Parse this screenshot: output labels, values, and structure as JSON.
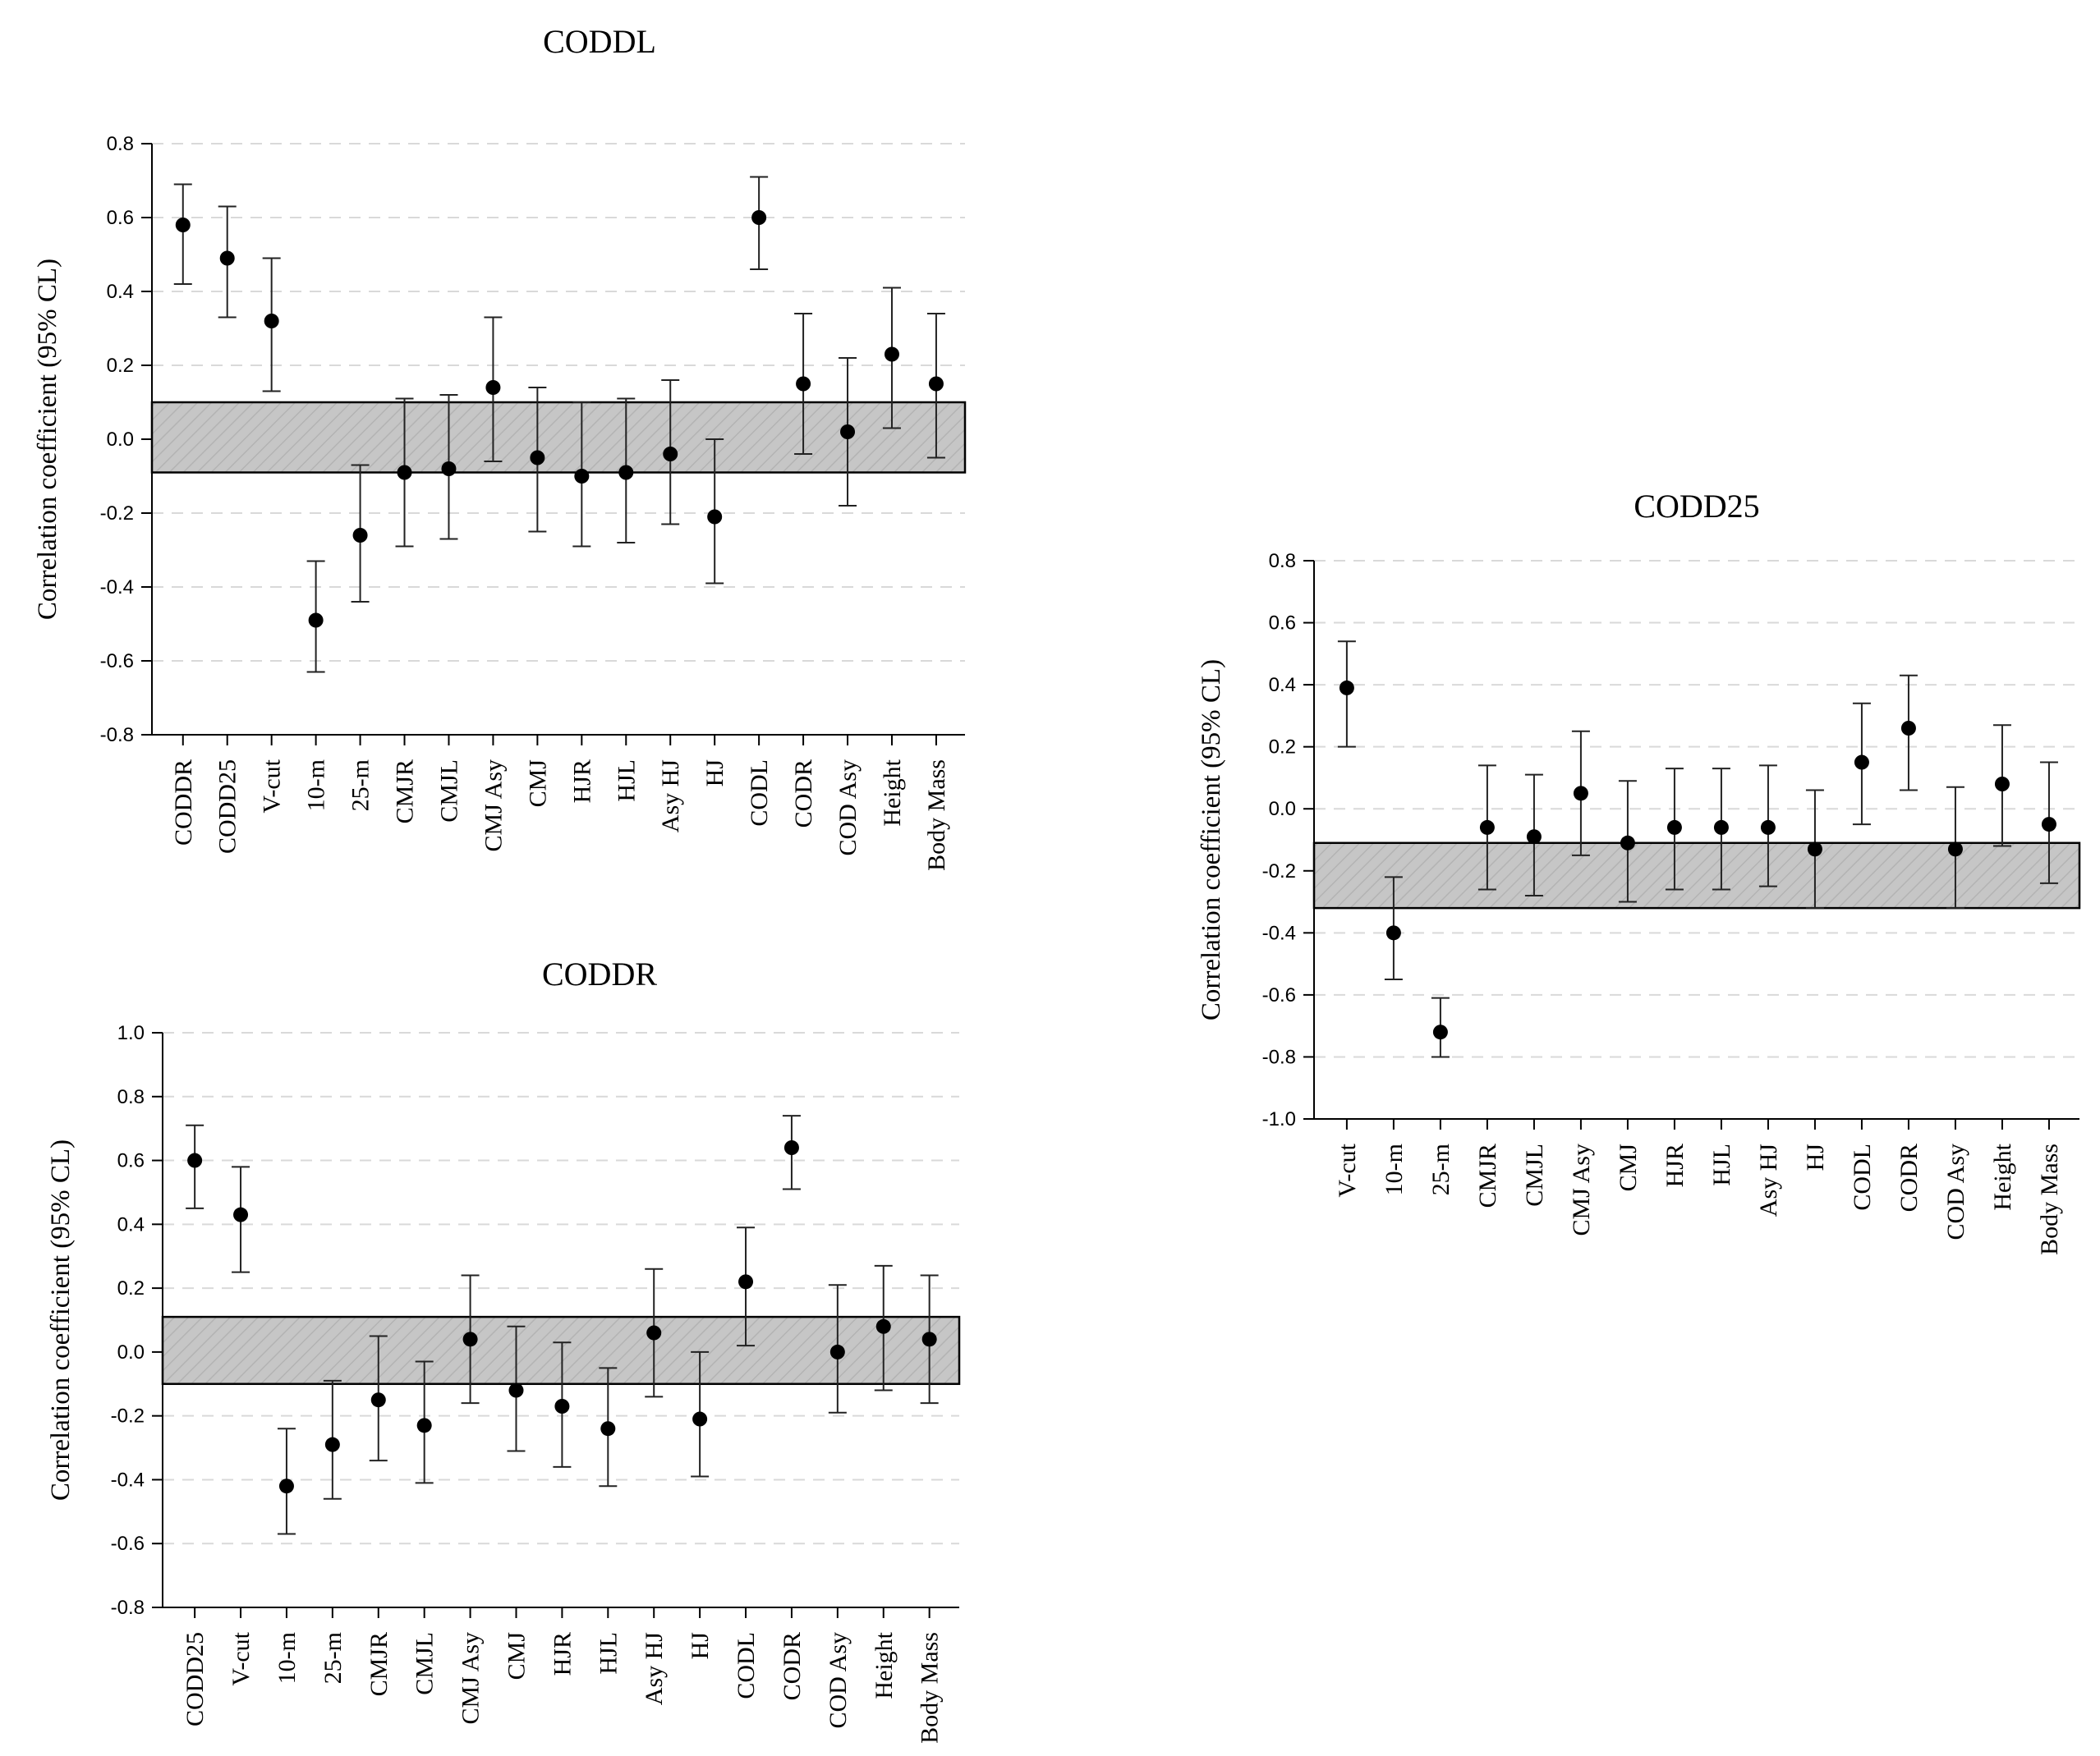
{
  "chart_data": [
    {
      "type": "scatter",
      "title": "CODDL",
      "ylabel": "Correlation coefficient (95% CL)",
      "xlabel": "",
      "ylim": [
        -0.8,
        0.8
      ],
      "yticks": [
        -0.8,
        -0.6,
        -0.4,
        -0.2,
        0.0,
        0.2,
        0.4,
        0.6,
        0.8
      ],
      "ytick_labels": [
        "-0.8",
        "-0.6",
        "-0.4",
        "-0.2",
        "0.0",
        "0.2",
        "0.4",
        "0.6",
        "0.8"
      ],
      "band": [
        -0.09,
        0.1
      ],
      "grid": "dashed horizontal",
      "categories": [
        "CODDR",
        "CODD25",
        "V-cut",
        "10-m",
        "25-m",
        "CMJR",
        "CMJL",
        "CMJ Asy",
        "CMJ",
        "HJR",
        "HJL",
        "Asy HJ",
        "HJ",
        "CODL",
        "CODR",
        "COD Asy",
        "Height",
        "Body Mass"
      ],
      "values": [
        0.58,
        0.49,
        0.32,
        -0.49,
        -0.26,
        -0.09,
        -0.08,
        0.14,
        -0.05,
        -0.1,
        -0.09,
        -0.04,
        -0.21,
        0.6,
        0.15,
        0.02,
        0.23,
        0.15
      ],
      "lower": [
        0.42,
        0.33,
        0.13,
        -0.63,
        -0.44,
        -0.29,
        -0.27,
        -0.06,
        -0.25,
        -0.29,
        -0.28,
        -0.23,
        -0.39,
        0.46,
        -0.04,
        -0.18,
        0.03,
        -0.05
      ],
      "upper": [
        0.69,
        0.63,
        0.49,
        -0.33,
        -0.07,
        0.11,
        0.12,
        0.33,
        0.14,
        0.1,
        0.11,
        0.16,
        0.0,
        0.71,
        0.34,
        0.22,
        0.41,
        0.34
      ]
    },
    {
      "type": "scatter",
      "title": "CODDR",
      "ylabel": "Correlation coefficient (95% CL)",
      "xlabel": "",
      "ylim": [
        -0.8,
        1.0
      ],
      "yticks": [
        -0.8,
        -0.6,
        -0.4,
        -0.2,
        0.0,
        0.2,
        0.4,
        0.6,
        0.8,
        1.0
      ],
      "ytick_labels": [
        "-0.8",
        "-0.6",
        "-0.4",
        "-0.2",
        "0.0",
        "0.2",
        "0.4",
        "0.6",
        "0.8",
        "1.0"
      ],
      "band": [
        -0.1,
        0.11
      ],
      "grid": "dashed horizontal",
      "categories": [
        "CODD25",
        "V-cut",
        "10-m",
        "25-m",
        "CMJR",
        "CMJL",
        "CMJ Asy",
        "CMJ",
        "HJR",
        "HJL",
        "Asy HJ",
        "HJ",
        "CODL",
        "CODR",
        "COD Asy",
        "Height",
        "Body Mass"
      ],
      "values": [
        0.6,
        0.43,
        -0.42,
        -0.29,
        -0.15,
        -0.23,
        0.04,
        -0.12,
        -0.17,
        -0.24,
        0.06,
        -0.21,
        0.22,
        0.64,
        0.0,
        0.08,
        0.04
      ],
      "lower": [
        0.45,
        0.25,
        -0.57,
        -0.46,
        -0.34,
        -0.41,
        -0.16,
        -0.31,
        -0.36,
        -0.42,
        -0.14,
        -0.39,
        0.02,
        0.51,
        -0.19,
        -0.12,
        -0.16
      ],
      "upper": [
        0.71,
        0.58,
        -0.24,
        -0.09,
        0.05,
        -0.03,
        0.24,
        0.08,
        0.03,
        -0.05,
        0.26,
        0.0,
        0.39,
        0.74,
        0.21,
        0.27,
        0.24
      ]
    },
    {
      "type": "scatter",
      "title": "CODD25",
      "ylabel": "Correlation coefficient (95% CL)",
      "xlabel": "",
      "ylim": [
        -1.0,
        0.8
      ],
      "yticks": [
        -1.0,
        -0.8,
        -0.6,
        -0.4,
        -0.2,
        0.0,
        0.2,
        0.4,
        0.6,
        0.8
      ],
      "ytick_labels": [
        "-1.0",
        "-0.8",
        "-0.6",
        "-0.4",
        "-0.2",
        "0.0",
        "0.2",
        "0.4",
        "0.6",
        "0.8"
      ],
      "band": [
        -0.32,
        -0.11
      ],
      "grid": "dashed horizontal",
      "categories": [
        "V-cut",
        "10-m",
        "25-m",
        "CMJR",
        "CMJL",
        "CMJ Asy",
        "CMJ",
        "HJR",
        "HJL",
        "Asy HJ",
        "HJ",
        "CODL",
        "CODR",
        "COD Asy",
        "Height",
        "Body Mass"
      ],
      "values": [
        0.39,
        -0.4,
        -0.72,
        -0.06,
        -0.09,
        0.05,
        -0.11,
        -0.06,
        -0.06,
        -0.06,
        -0.13,
        0.15,
        0.26,
        -0.13,
        0.08,
        -0.05
      ],
      "lower": [
        0.2,
        -0.55,
        -0.8,
        -0.26,
        -0.28,
        -0.15,
        -0.3,
        -0.26,
        -0.26,
        -0.25,
        -0.32,
        -0.05,
        0.06,
        -0.32,
        -0.12,
        -0.24
      ],
      "upper": [
        0.54,
        -0.22,
        -0.61,
        0.14,
        0.11,
        0.25,
        0.09,
        0.13,
        0.13,
        0.14,
        0.06,
        0.34,
        0.43,
        0.07,
        0.27,
        0.15
      ]
    }
  ]
}
